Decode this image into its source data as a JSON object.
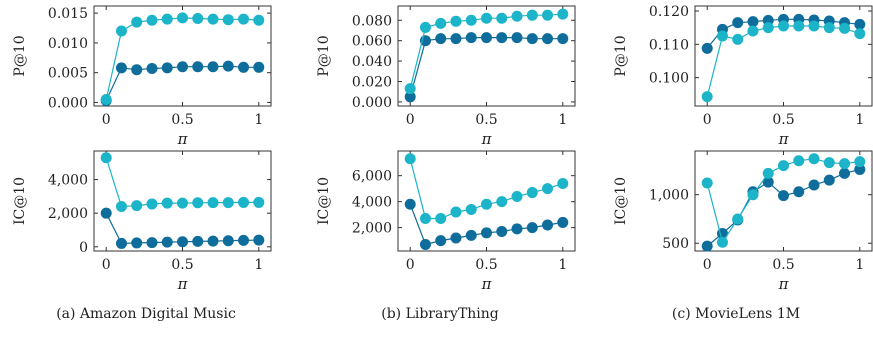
{
  "chart_data": [
    {
      "type": "line",
      "panel": "a",
      "ylabel": "P@10",
      "xlabel": "π",
      "x": [
        0,
        0.1,
        0.2,
        0.3,
        0.4,
        0.5,
        0.6,
        0.7,
        0.8,
        0.9,
        1.0
      ],
      "xticks": [
        "0",
        "0.5",
        "1"
      ],
      "yticks": [
        "0.000",
        "0.005",
        "0.010",
        "0.015"
      ],
      "ylim": [
        -0.0006,
        0.0162
      ],
      "series": [
        {
          "color": "#0e6d9a",
          "values": [
            0.0003,
            0.0058,
            0.0055,
            0.0057,
            0.0058,
            0.006,
            0.006,
            0.006,
            0.0061,
            0.0059,
            0.0059
          ]
        },
        {
          "color": "#1bb4c8",
          "values": [
            0.0005,
            0.012,
            0.0135,
            0.0138,
            0.014,
            0.0142,
            0.0141,
            0.014,
            0.0139,
            0.014,
            0.0138
          ]
        }
      ]
    },
    {
      "type": "line",
      "panel": "b",
      "ylabel": "P@10",
      "xlabel": "π",
      "x": [
        0,
        0.1,
        0.2,
        0.3,
        0.4,
        0.5,
        0.6,
        0.7,
        0.8,
        0.9,
        1.0
      ],
      "xticks": [
        "0",
        "0.5",
        "1"
      ],
      "yticks": [
        "0.000",
        "0.020",
        "0.040",
        "0.060",
        "0.080"
      ],
      "ylim": [
        -0.004,
        0.094
      ],
      "series": [
        {
          "color": "#0e6d9a",
          "values": [
            0.005,
            0.06,
            0.062,
            0.062,
            0.063,
            0.063,
            0.063,
            0.063,
            0.062,
            0.062,
            0.062
          ]
        },
        {
          "color": "#1bb4c8",
          "values": [
            0.013,
            0.073,
            0.077,
            0.079,
            0.08,
            0.082,
            0.082,
            0.084,
            0.085,
            0.085,
            0.086
          ]
        }
      ]
    },
    {
      "type": "line",
      "panel": "c",
      "ylabel": "P@10",
      "xlabel": "π",
      "x": [
        0,
        0.1,
        0.2,
        0.3,
        0.4,
        0.5,
        0.6,
        0.7,
        0.8,
        0.9,
        1.0
      ],
      "xticks": [
        "0",
        "0.5",
        "1"
      ],
      "yticks": [
        "0.100",
        "0.110",
        "0.120"
      ],
      "ylim": [
        0.0915,
        0.1215
      ],
      "series": [
        {
          "color": "#0e6d9a",
          "values": [
            0.1088,
            0.1145,
            0.1165,
            0.1168,
            0.1172,
            0.1175,
            0.1175,
            0.1173,
            0.117,
            0.1165,
            0.116
          ]
        },
        {
          "color": "#1bb4c8",
          "values": [
            0.0943,
            0.1125,
            0.1115,
            0.114,
            0.115,
            0.1155,
            0.1155,
            0.1155,
            0.115,
            0.1148,
            0.1132
          ]
        }
      ]
    },
    {
      "type": "line",
      "panel": "a",
      "ylabel": "IC@10",
      "xlabel": "π",
      "x": [
        0,
        0.1,
        0.2,
        0.3,
        0.4,
        0.5,
        0.6,
        0.7,
        0.8,
        0.9,
        1.0
      ],
      "xticks": [
        "0",
        "0.5",
        "1"
      ],
      "yticks": [
        "0",
        "2,000",
        "4,000"
      ],
      "ylim": [
        -250,
        5700
      ],
      "series": [
        {
          "color": "#0e6d9a",
          "values": [
            2000,
            200,
            230,
            250,
            280,
            300,
            320,
            340,
            360,
            380,
            400
          ]
        },
        {
          "color": "#1bb4c8",
          "values": [
            5300,
            2400,
            2450,
            2550,
            2600,
            2600,
            2620,
            2630,
            2630,
            2640,
            2640
          ]
        }
      ]
    },
    {
      "type": "line",
      "panel": "b",
      "ylabel": "IC@10",
      "xlabel": "π",
      "x": [
        0,
        0.1,
        0.2,
        0.3,
        0.4,
        0.5,
        0.6,
        0.7,
        0.8,
        0.9,
        1.0
      ],
      "xticks": [
        "0",
        "0.5",
        "1"
      ],
      "yticks": [
        "2,000",
        "4,000",
        "6,000"
      ],
      "ylim": [
        200,
        7900
      ],
      "series": [
        {
          "color": "#0e6d9a",
          "values": [
            3800,
            700,
            1000,
            1200,
            1400,
            1600,
            1700,
            1900,
            2000,
            2200,
            2400
          ]
        },
        {
          "color": "#1bb4c8",
          "values": [
            7300,
            2700,
            2700,
            3200,
            3400,
            3800,
            4000,
            4400,
            4700,
            5000,
            5400
          ]
        }
      ]
    },
    {
      "type": "line",
      "panel": "c",
      "ylabel": "IC@10",
      "xlabel": "π",
      "x": [
        0,
        0.1,
        0.2,
        0.3,
        0.4,
        0.5,
        0.6,
        0.7,
        0.8,
        0.9,
        1.0
      ],
      "xticks": [
        "0",
        "0.5",
        "1"
      ],
      "yticks": [
        "500",
        "1,000"
      ],
      "ylim": [
        420,
        1450
      ],
      "series": [
        {
          "color": "#0e6d9a",
          "values": [
            470,
            600,
            740,
            1030,
            1130,
            990,
            1030,
            1100,
            1150,
            1220,
            1260
          ]
        },
        {
          "color": "#1bb4c8",
          "values": [
            1120,
            510,
            750,
            1000,
            1220,
            1300,
            1350,
            1370,
            1330,
            1320,
            1340
          ]
        }
      ]
    }
  ],
  "captions": {
    "a": "(a) Amazon Digital Music",
    "b": "(b) LibraryThing",
    "c": "(c) MovieLens 1M"
  }
}
